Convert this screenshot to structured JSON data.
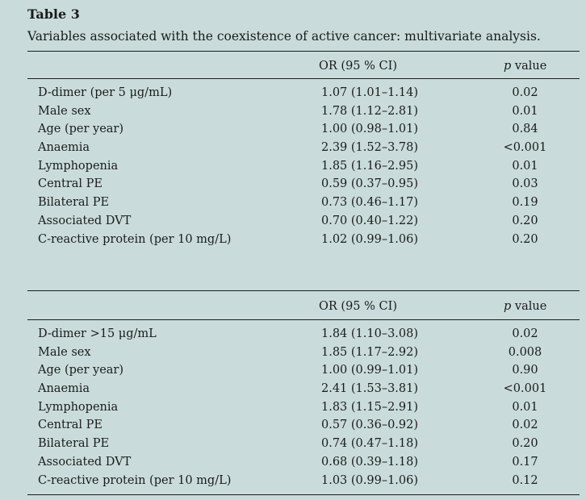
{
  "caption": {
    "label": "Table 3",
    "text": "Variables associated with the coexistence of active cancer: multivariate analysis."
  },
  "tables": [
    {
      "header": {
        "or": "OR (95 % CI)",
        "p_italic": "p",
        "p_rest": " value"
      },
      "rows": [
        {
          "variable": "D-dimer (per 5 μg/mL)",
          "or": "1.07 (1.01–1.14)",
          "p": "0.02"
        },
        {
          "variable": "Male sex",
          "or": "1.78 (1.12–2.81)",
          "p": "0.01"
        },
        {
          "variable": "Age (per year)",
          "or": "1.00 (0.98–1.01)",
          "p": "0.84"
        },
        {
          "variable": "Anaemia",
          "or": "2.39 (1.52–3.78)",
          "p": "<0.001"
        },
        {
          "variable": "Lymphopenia",
          "or": "1.85 (1.16–2.95)",
          "p": "0.01"
        },
        {
          "variable": "Central PE",
          "or": "0.59 (0.37–0.95)",
          "p": "0.03"
        },
        {
          "variable": "Bilateral PE",
          "or": "0.73 (0.46–1.17)",
          "p": "0.19"
        },
        {
          "variable": "Associated DVT",
          "or": "0.70 (0.40–1.22)",
          "p": "0.20"
        },
        {
          "variable": "C-reactive protein (per 10 mg/L)",
          "or": "1.02 (0.99–1.06)",
          "p": "0.20"
        }
      ]
    },
    {
      "header": {
        "or": "OR (95 % CI)",
        "p_italic": "p",
        "p_rest": " value"
      },
      "rows": [
        {
          "variable": "D-dimer >15 μg/mL",
          "or": "1.84 (1.10–3.08)",
          "p": "0.02"
        },
        {
          "variable": "Male sex",
          "or": "1.85 (1.17–2.92)",
          "p": "0.008"
        },
        {
          "variable": "Age (per year)",
          "or": "1.00 (0.99–1.01)",
          "p": "0.90"
        },
        {
          "variable": "Anaemia",
          "or": "2.41 (1.53–3.81)",
          "p": "<0.001"
        },
        {
          "variable": "Lymphopenia",
          "or": "1.83 (1.15–2.91)",
          "p": "0.01"
        },
        {
          "variable": "Central PE",
          "or": "0.57 (0.36–0.92)",
          "p": "0.02"
        },
        {
          "variable": "Bilateral PE",
          "or": "0.74 (0.47–1.18)",
          "p": "0.20"
        },
        {
          "variable": "Associated DVT",
          "or": "0.68 (0.39–1.18)",
          "p": "0.17"
        },
        {
          "variable": "C-reactive protein (per 10 mg/L)",
          "or": "1.03 (0.99–1.06)",
          "p": "0.12"
        }
      ]
    }
  ]
}
